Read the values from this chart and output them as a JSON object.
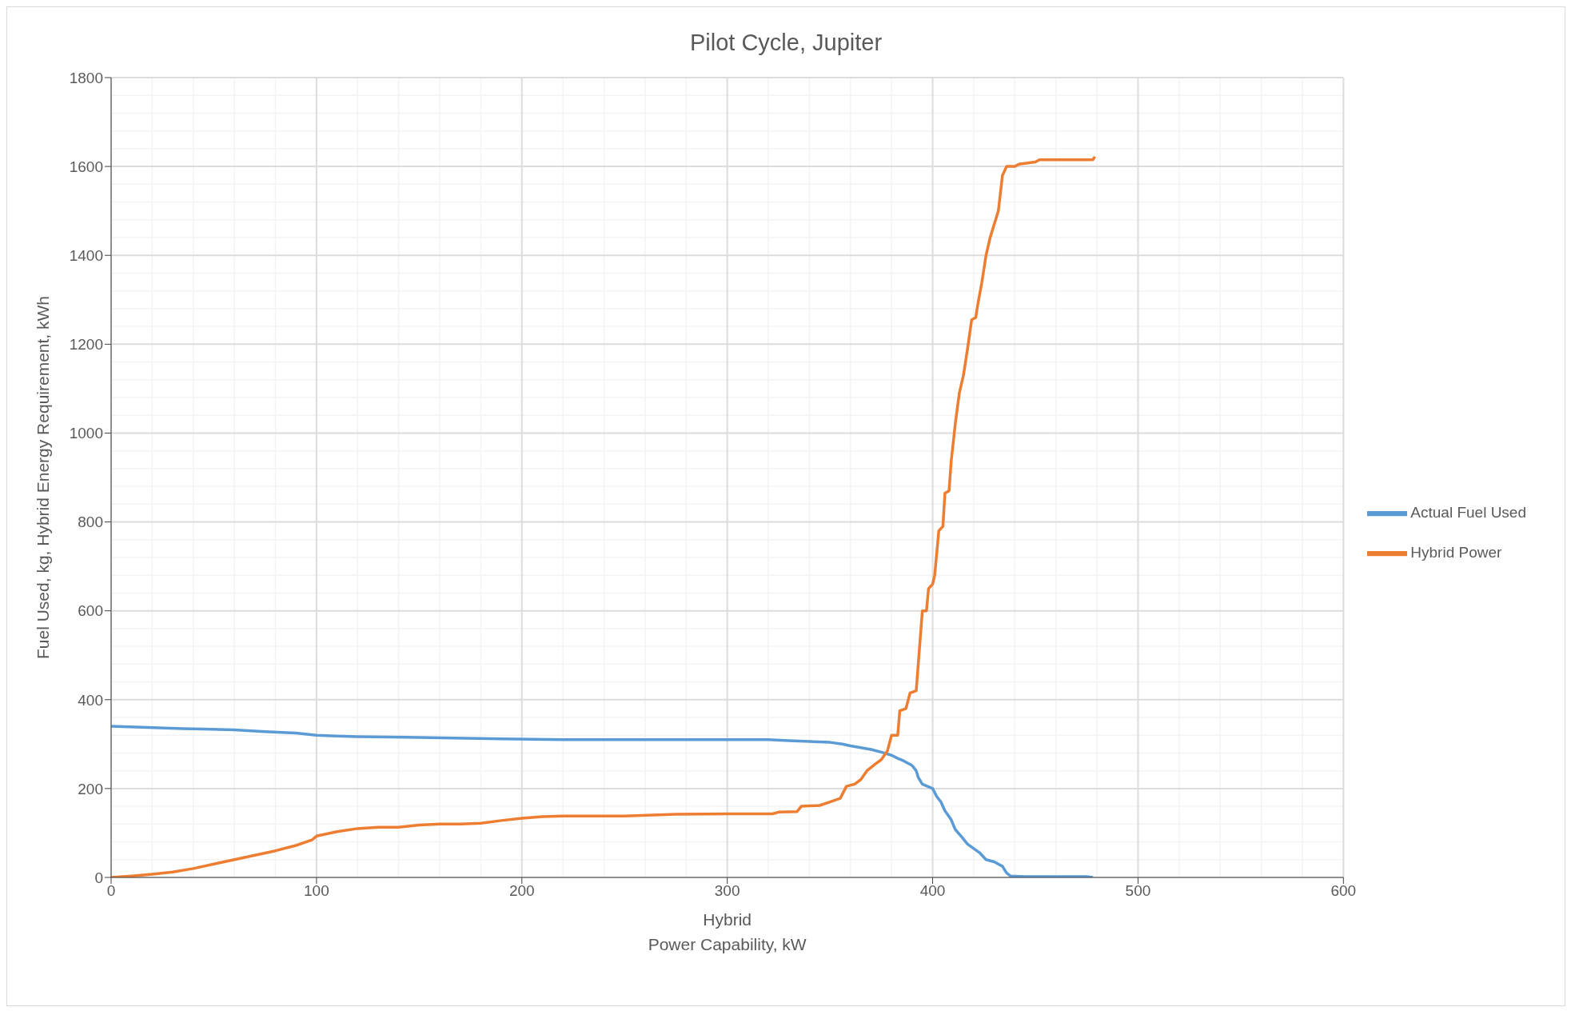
{
  "chart_data": {
    "type": "line",
    "title": "Pilot Cycle, Jupiter",
    "xlabel": "Hybrid\nPower Capability, kW",
    "ylabel": "Fuel Used, kg, Hybrid Energy Requirement, kWh",
    "xlim": [
      0,
      600
    ],
    "xticks": [
      0,
      100,
      200,
      300,
      400,
      500,
      600
    ],
    "ylim": [
      0,
      1800
    ],
    "yticks": [
      0,
      200,
      400,
      600,
      800,
      1000,
      1200,
      1400,
      1600,
      1800
    ],
    "grid": true,
    "legend": "right",
    "marker": "none",
    "line_style": "solid",
    "series": [
      {
        "name": "Actual Fuel Used",
        "color": "#5b9bd5",
        "x": [
          0,
          15,
          35,
          45,
          60,
          75,
          90,
          100,
          110,
          120,
          150,
          190,
          220,
          320,
          330,
          340,
          350,
          356,
          360,
          365,
          370,
          375,
          380,
          383,
          386,
          390,
          392,
          393,
          395,
          400,
          402,
          404,
          406,
          409,
          411,
          414,
          417,
          420,
          423,
          426,
          430,
          434,
          436,
          438,
          445,
          475,
          478
        ],
        "values": [
          340,
          338,
          335,
          334,
          332,
          328,
          325,
          320,
          318,
          317,
          315,
          312,
          310,
          310,
          308,
          306,
          304,
          300,
          296,
          292,
          288,
          282,
          275,
          268,
          262,
          252,
          240,
          225,
          210,
          200,
          182,
          170,
          150,
          130,
          108,
          92,
          75,
          65,
          55,
          40,
          35,
          25,
          10,
          3,
          2,
          2,
          0
        ]
      },
      {
        "name": "Hybrid Power",
        "color": "#ed7d31",
        "x": [
          0,
          10,
          20,
          30,
          40,
          50,
          60,
          70,
          80,
          90,
          98,
          100,
          110,
          120,
          130,
          140,
          150,
          160,
          170,
          180,
          190,
          200,
          210,
          220,
          250,
          275,
          300,
          322,
          325,
          334,
          336,
          345,
          350,
          355,
          358,
          362,
          365,
          368,
          372,
          375,
          378,
          380,
          383,
          384,
          387,
          389,
          392,
          393,
          395,
          397,
          398,
          400,
          401,
          403,
          405,
          406,
          408,
          409,
          411,
          413,
          415,
          417,
          419,
          421,
          422,
          424,
          426,
          428,
          430,
          432,
          434,
          436,
          440,
          442,
          450,
          452,
          478,
          479
        ],
        "values": [
          0,
          3,
          7,
          12,
          20,
          30,
          40,
          50,
          60,
          72,
          85,
          93,
          103,
          110,
          113,
          113,
          118,
          120,
          120,
          122,
          128,
          133,
          137,
          138,
          138,
          142,
          143,
          143,
          147,
          148,
          160,
          162,
          170,
          178,
          205,
          210,
          220,
          240,
          255,
          265,
          285,
          320,
          320,
          375,
          380,
          415,
          420,
          480,
          600,
          600,
          650,
          660,
          680,
          780,
          790,
          865,
          870,
          935,
          1020,
          1090,
          1130,
          1190,
          1255,
          1260,
          1290,
          1340,
          1400,
          1440,
          1470,
          1500,
          1580,
          1600,
          1600,
          1605,
          1610,
          1615,
          1615,
          1622
        ]
      }
    ]
  }
}
